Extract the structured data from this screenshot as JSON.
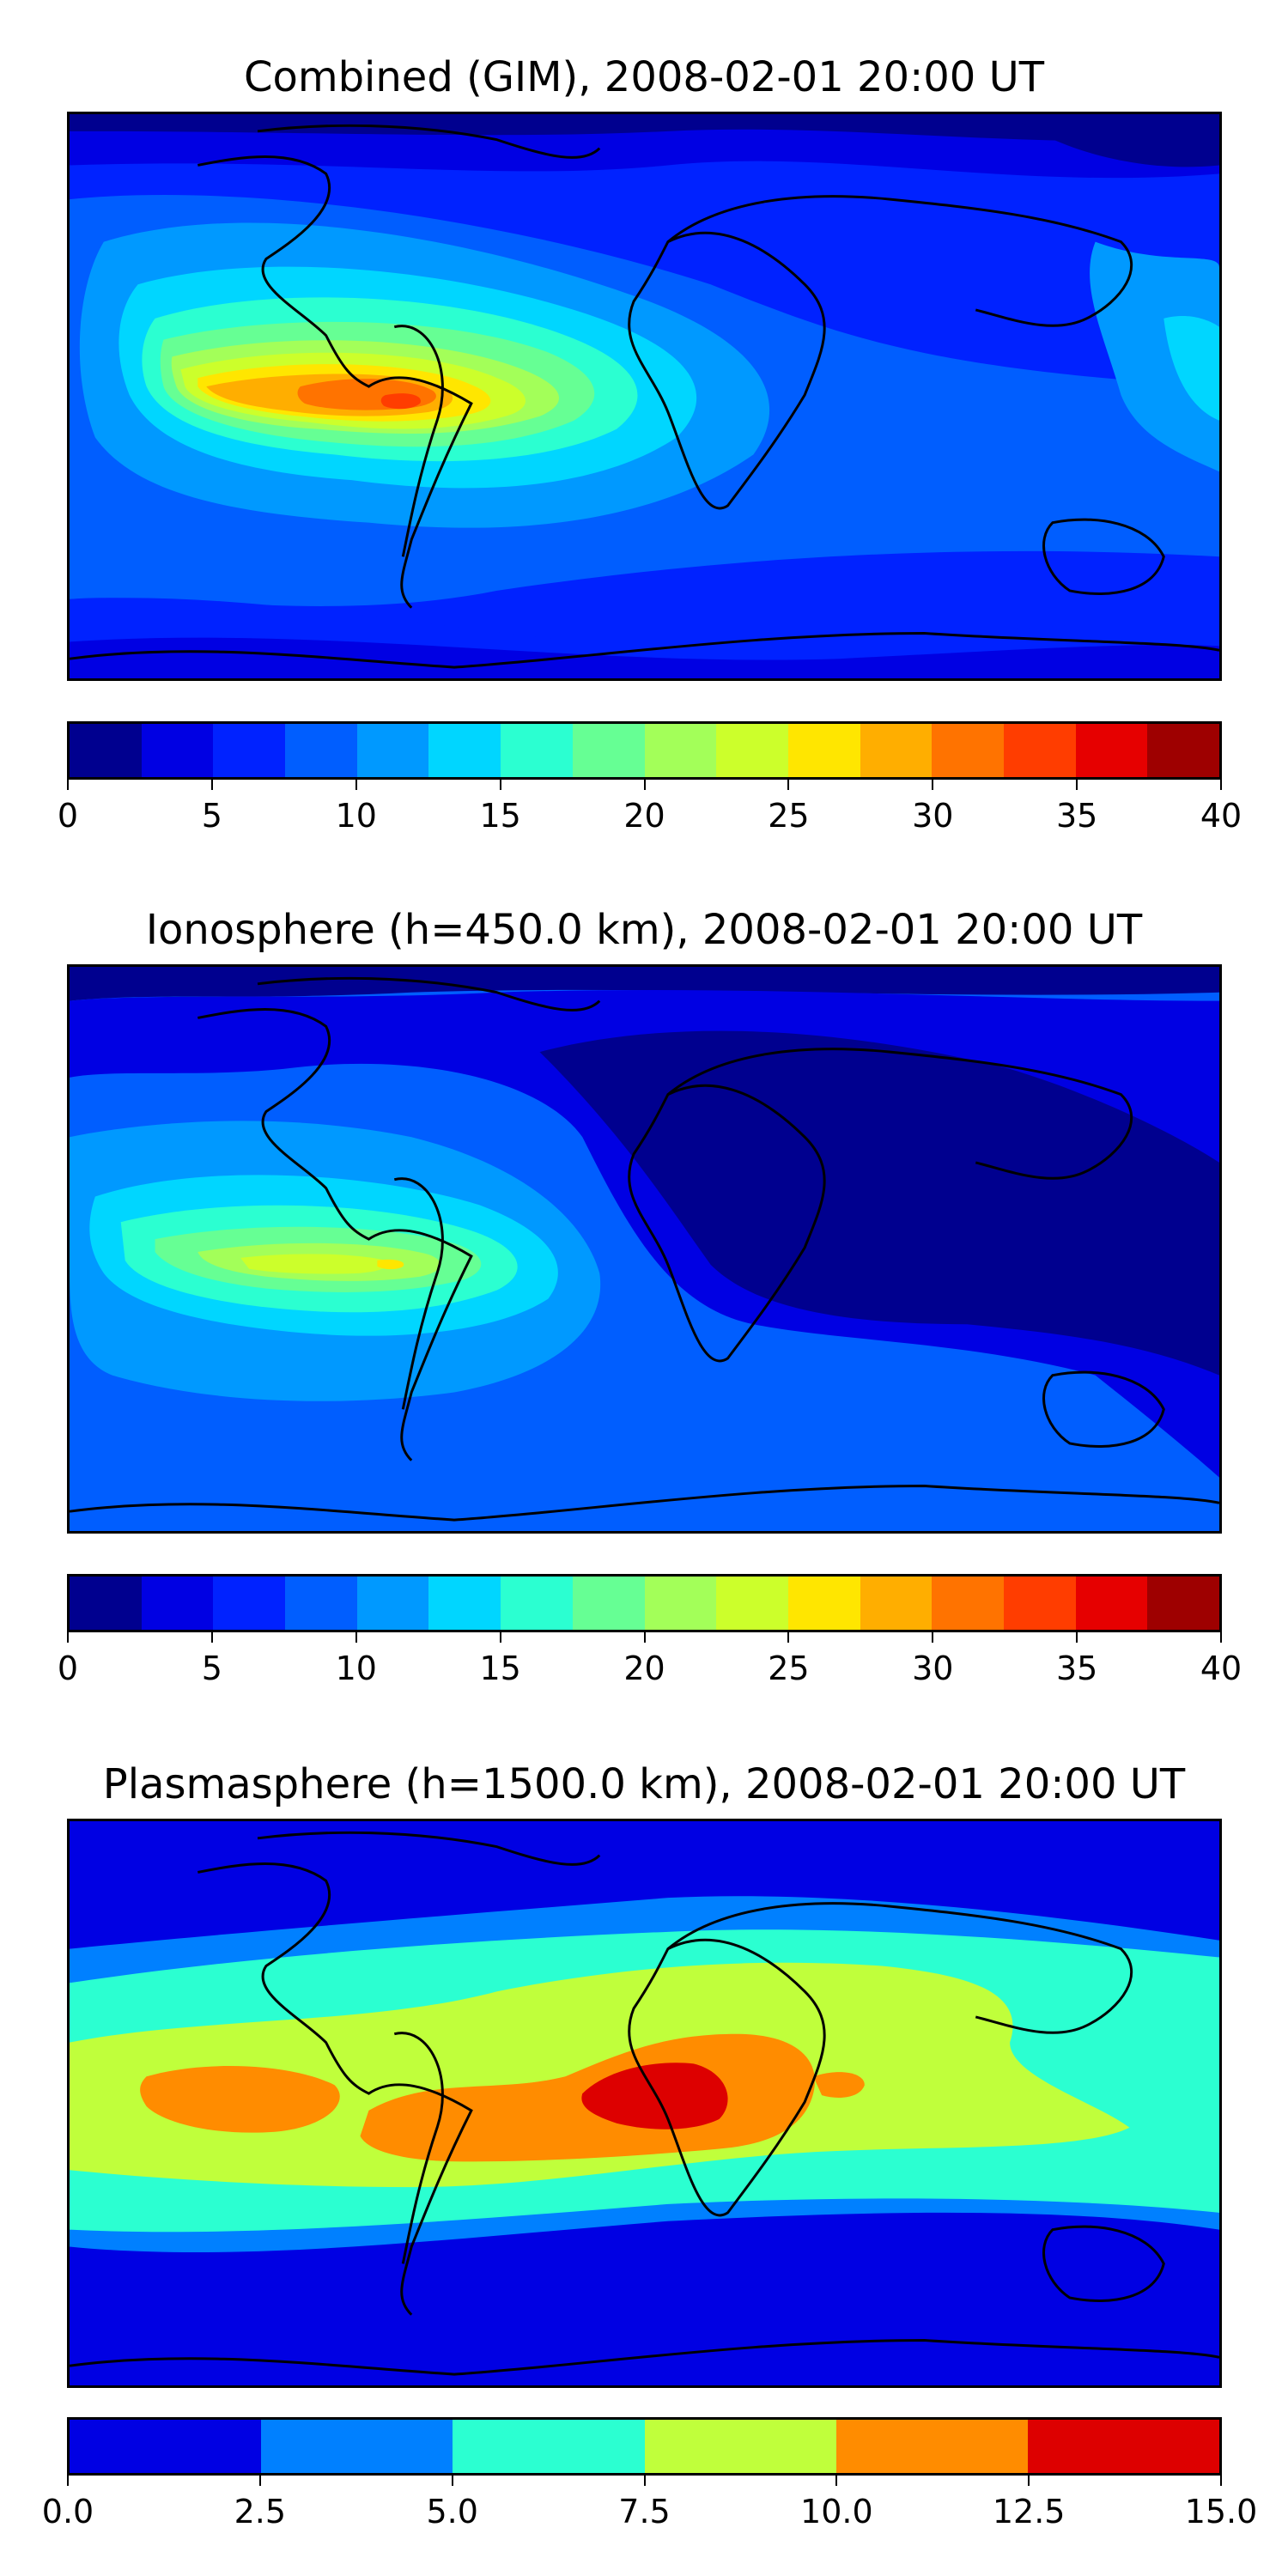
{
  "panels": [
    {
      "title": "Combined (GIM), 2008-02-01 20:00 UT",
      "colorbar": {
        "ticks": [
          "0",
          "5",
          "10",
          "15",
          "20",
          "25",
          "30",
          "35",
          "40"
        ],
        "colors": [
          "#00008f",
          "#0000e3",
          "#0022ff",
          "#005eff",
          "#0099ff",
          "#00d6ff",
          "#2bffd1",
          "#66ff94",
          "#a3ff59",
          "#ccff2b",
          "#ffe600",
          "#ffae00",
          "#ff7300",
          "#ff3d00",
          "#e60000",
          "#9e0000"
        ]
      }
    },
    {
      "title": "Ionosphere  (h=450.0 km), 2008-02-01 20:00 UT",
      "colorbar": {
        "ticks": [
          "0",
          "5",
          "10",
          "15",
          "20",
          "25",
          "30",
          "35",
          "40"
        ],
        "colors": [
          "#00008f",
          "#0000e3",
          "#0022ff",
          "#005eff",
          "#0099ff",
          "#00d6ff",
          "#2bffd1",
          "#66ff94",
          "#a3ff59",
          "#ccff2b",
          "#ffe600",
          "#ffae00",
          "#ff7300",
          "#ff3d00",
          "#e60000",
          "#9e0000"
        ]
      }
    },
    {
      "title": "Plasmasphere (h=1500.0 km), 2008-02-01 20:00 UT",
      "colorbar": {
        "ticks": [
          "0.0",
          "2.5",
          "5.0",
          "7.5",
          "10.0",
          "12.5",
          "15.0"
        ],
        "colors": [
          "#0000e3",
          "#0080ff",
          "#2bffd1",
          "#c0ff3b",
          "#ff8c00",
          "#dd0000"
        ]
      }
    }
  ]
}
